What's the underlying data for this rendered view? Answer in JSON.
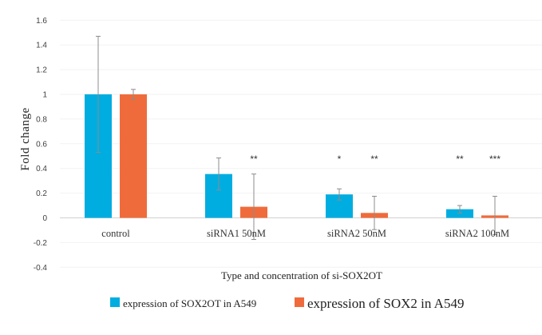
{
  "chart_data": {
    "type": "bar",
    "title": "",
    "ylabel": "Fold  change",
    "xlabel": "Type and concentration  of si-SOX2OT",
    "ylim": [
      -0.4,
      1.6
    ],
    "ytick_step": 0.2,
    "yticks": [
      "1.6",
      "1.4",
      "1.2",
      "1",
      "0.8",
      "0.6",
      "0.4",
      "0.2",
      "0",
      "-0.2",
      "-0.4"
    ],
    "categories": [
      "control",
      "siRNA1  50nM",
      "siRNA2  50nM",
      "siRNA2  100nM"
    ],
    "legend_position": "bottom",
    "series": [
      {
        "name": "expression of SOX2OT in A549",
        "color": "#00ADE0",
        "values": [
          1.0,
          0.355,
          0.19,
          0.07
        ],
        "errors": [
          0.47,
          0.13,
          0.045,
          0.03
        ],
        "significance": [
          "",
          "",
          "*",
          "**"
        ]
      },
      {
        "name": "expression of SOX2 in A549",
        "color": "#F06B3B",
        "values": [
          1.0,
          0.09,
          0.04,
          0.02
        ],
        "errors": [
          0.04,
          0.265,
          0.135,
          0.155
        ],
        "significance": [
          "",
          "**",
          "**",
          "***"
        ]
      }
    ]
  }
}
